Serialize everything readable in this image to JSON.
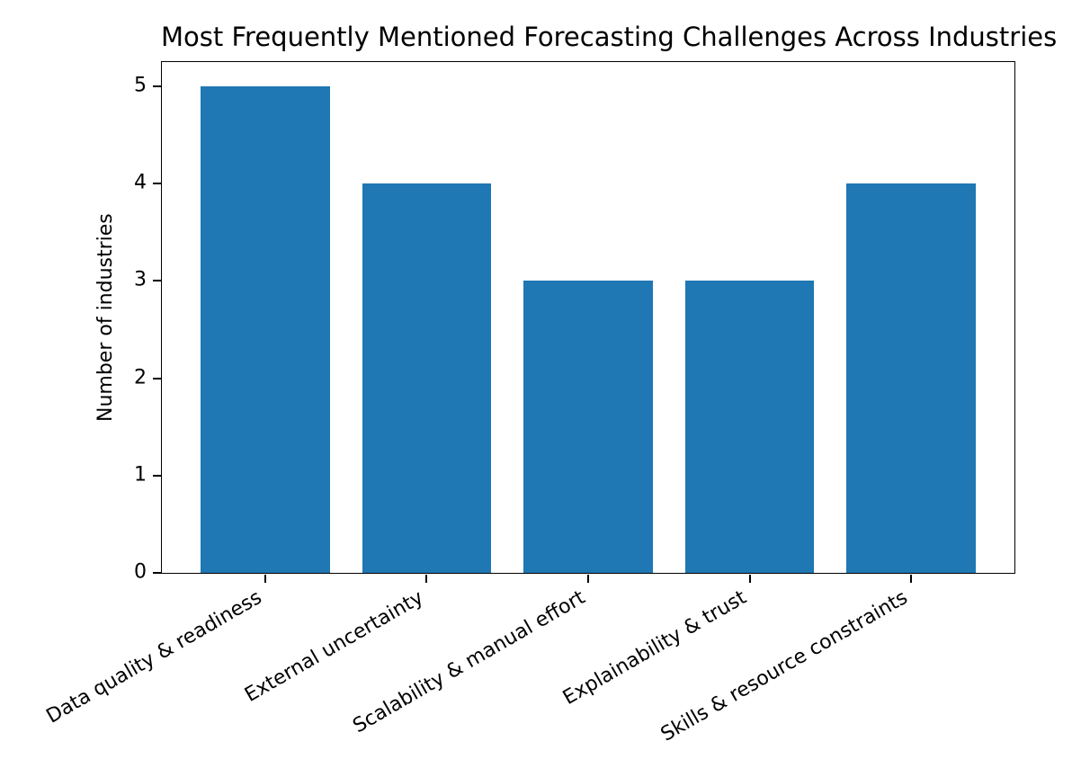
{
  "chart_data": {
    "type": "bar",
    "title": "Most Frequently Mentioned Forecasting Challenges Across Industries",
    "xlabel": "",
    "ylabel": "Number of industries",
    "categories": [
      "Data quality & readiness",
      "External uncertainty",
      "Scalability & manual effort",
      "Explainability & trust",
      "Skills & resource constraints"
    ],
    "values": [
      5,
      4,
      3,
      3,
      4
    ],
    "yticks": [
      "0",
      "1",
      "2",
      "3",
      "4",
      "5"
    ],
    "ylim": [
      0,
      5.25
    ],
    "bar_color": "#1f77b4",
    "text_color": "#000000",
    "grid": false,
    "legend": null,
    "x_tick_label_rotation_deg": 30
  }
}
